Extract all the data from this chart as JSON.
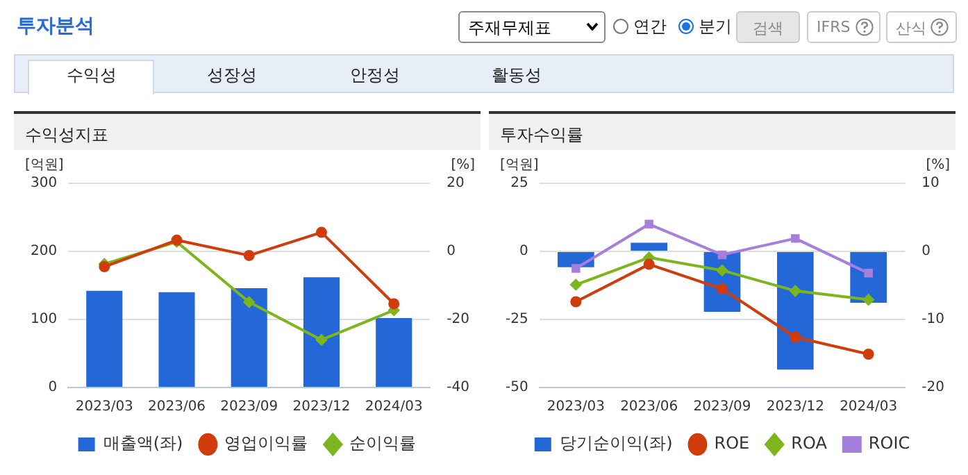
{
  "chart_data": [
    {
      "type": "other",
      "title": "투자분석",
      "annotations": [
        "주재무제표",
        "연간",
        "분기",
        "검색",
        "IFRS",
        "산식",
        "수익성",
        "성장성",
        "안정성",
        "활동성"
      ]
    },
    {
      "type": "bar",
      "title": "수익성지표",
      "ylabel": "[억원]",
      "y2label": "[%]",
      "categories": [
        "2023/03",
        "2023/06",
        "2023/09",
        "2023/12",
        "2024/03"
      ],
      "series": [
        {
          "name": "매출액(좌)",
          "type": "bar",
          "color": "#2468d8",
          "values": [
            142,
            140,
            146,
            162,
            102
          ]
        },
        {
          "name": "영업이익률",
          "type": "line",
          "axis": "y2",
          "color": "#d03c0c",
          "marker": "circle",
          "values": [
            -4.5,
            3.3,
            -1.2,
            5.6,
            -15.4
          ]
        },
        {
          "name": "순이익률",
          "type": "line",
          "axis": "y2",
          "color": "#7cb51c",
          "marker": "diamond",
          "values": [
            -3.7,
            2.8,
            -14.9,
            -26,
            -17.3
          ]
        }
      ],
      "ylim": [
        0,
        300
      ],
      "yticks": [
        0,
        100,
        200,
        300
      ],
      "y2lim": [
        -40,
        20
      ],
      "y2ticks": [
        -40,
        -20,
        0,
        20
      ],
      "grid": "y",
      "legend": "bottom"
    },
    {
      "type": "bar",
      "title": "투자수익률",
      "ylabel": "[억원]",
      "y2label": "[%]",
      "categories": [
        "2023/03",
        "2023/06",
        "2023/09",
        "2023/12",
        "2024/03"
      ],
      "series": [
        {
          "name": "당기순이익(좌)",
          "type": "bar",
          "color": "#2468d8",
          "values": [
            -5.8,
            3.2,
            -22.2,
            -43.4,
            -18.9
          ]
        },
        {
          "name": "ROE",
          "type": "line",
          "axis": "y2",
          "color": "#d03c0c",
          "marker": "circle",
          "values": [
            -7.4,
            -1.9,
            -5.5,
            -12.6,
            -15.1
          ]
        },
        {
          "name": "ROA",
          "type": "line",
          "axis": "y2",
          "color": "#7cb51c",
          "marker": "diamond",
          "values": [
            -4.9,
            -0.9,
            -2.8,
            -5.8,
            -7.1
          ]
        },
        {
          "name": "ROIC",
          "type": "line",
          "axis": "y2",
          "color": "#a67fdc",
          "marker": "square",
          "values": [
            -2.5,
            4.0,
            -0.5,
            1.9,
            -3.2
          ]
        }
      ],
      "ylim": [
        -50,
        25
      ],
      "yticks": [
        -50,
        -25,
        0,
        25
      ],
      "y2lim": [
        -20,
        10
      ],
      "y2ticks": [
        -20,
        -10,
        0,
        10
      ],
      "grid": "y",
      "legend": "bottom"
    }
  ]
}
